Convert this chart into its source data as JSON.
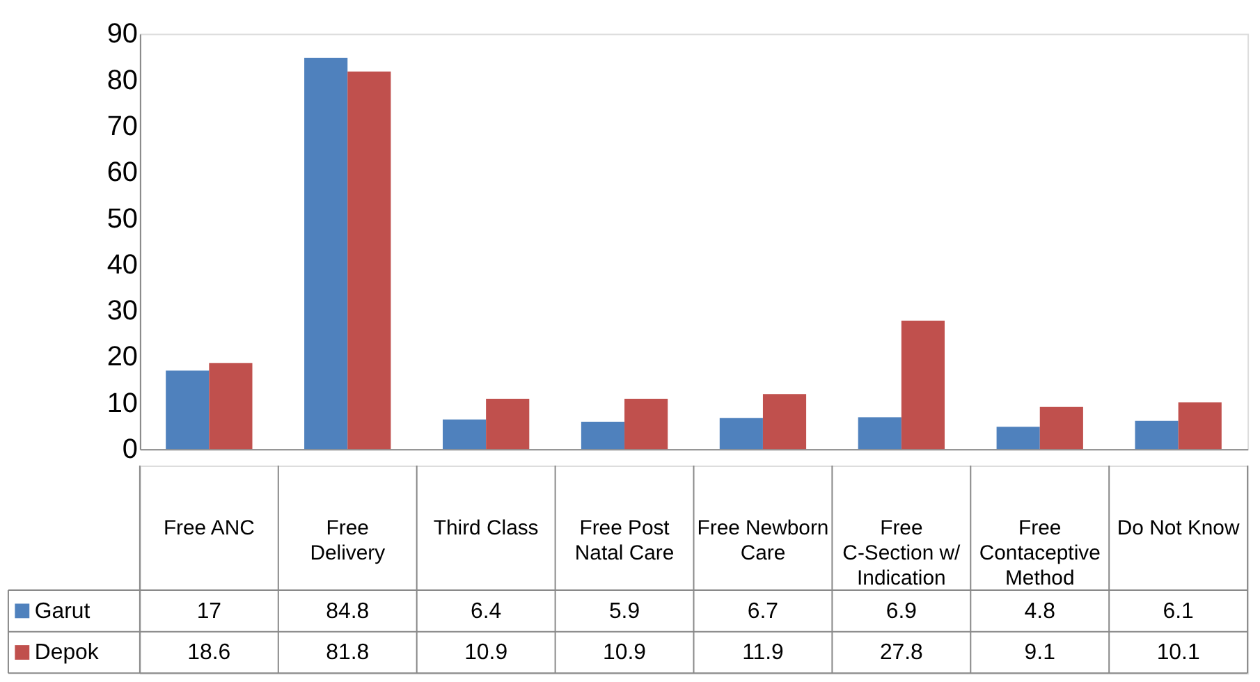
{
  "chart_data": {
    "type": "bar",
    "categories": [
      "Free ANC",
      "Free Delivery",
      "Third Class",
      "Free Post Natal Care",
      "Free Newborn Care",
      "Free C-Section w/ Indication",
      "Free Contaceptive Method",
      "Do Not Know"
    ],
    "series": [
      {
        "name": "Garut",
        "color": "#4f81bd",
        "values": [
          17,
          84.8,
          6.4,
          5.9,
          6.7,
          6.9,
          4.8,
          6.1
        ]
      },
      {
        "name": "Depok",
        "color": "#c0504d",
        "values": [
          18.6,
          81.8,
          10.9,
          10.9,
          11.9,
          27.8,
          9.1,
          10.1
        ]
      }
    ],
    "ylim": [
      0,
      90
    ],
    "yticks": [
      0,
      10,
      20,
      30,
      40,
      50,
      60,
      70,
      80,
      90
    ],
    "data_labels": true,
    "legend": "bottom",
    "grid": false
  }
}
